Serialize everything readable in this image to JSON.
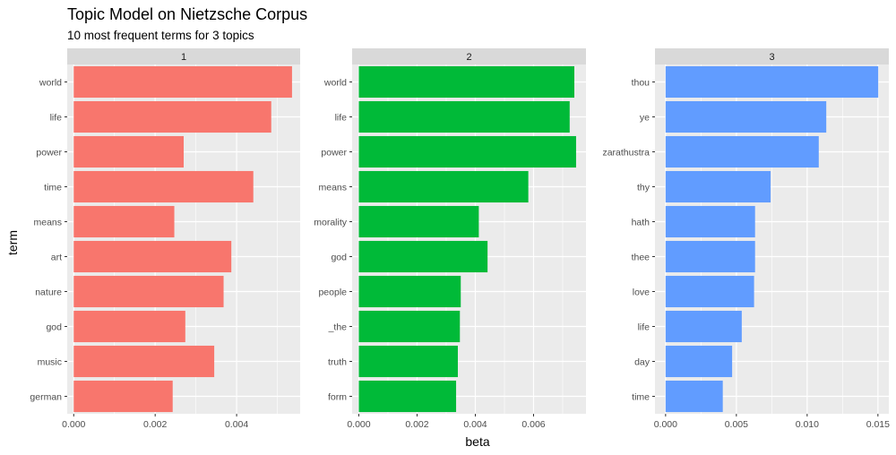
{
  "chart_data": {
    "type": "bar",
    "orientation": "horizontal",
    "title": "Topic Model on Nietzsche Corpus",
    "subtitle": "10 most frequent terms for 3 topics",
    "xlabel": "beta",
    "ylabel": "term",
    "grid": true,
    "legend": "none",
    "panels": [
      {
        "label": "1",
        "color": "#F8766D",
        "xlim": [
          -0.00016,
          0.00556
        ],
        "xticks": [
          0.0,
          0.002,
          0.004
        ],
        "xtick_labels": [
          "0.000",
          "0.002",
          "0.004"
        ],
        "categories": [
          "world",
          "life",
          "power",
          "time",
          "means",
          "art",
          "nature",
          "god",
          "music",
          "german"
        ],
        "values": [
          0.00536,
          0.00485,
          0.0027,
          0.00441,
          0.00247,
          0.00387,
          0.00368,
          0.00274,
          0.00345,
          0.00243
        ]
      },
      {
        "label": "2",
        "color": "#00BA38",
        "xlim": [
          -0.00023,
          0.0078
        ],
        "xticks": [
          0.0,
          0.002,
          0.004,
          0.006
        ],
        "xtick_labels": [
          "0.000",
          "0.002",
          "0.004",
          "0.006"
        ],
        "categories": [
          "world",
          "life",
          "power",
          "means",
          "morality",
          "god",
          "people",
          "_the",
          "truth",
          "form"
        ],
        "values": [
          0.0074,
          0.00724,
          0.00746,
          0.00582,
          0.00412,
          0.00442,
          0.0035,
          0.00347,
          0.0034,
          0.00334
        ]
      },
      {
        "label": "3",
        "color": "#619CFF",
        "xlim": [
          -0.00075,
          0.01577
        ],
        "xticks": [
          0.0,
          0.005,
          0.01,
          0.015
        ],
        "xtick_labels": [
          "0.000",
          "0.005",
          "0.010",
          "0.015"
        ],
        "categories": [
          "thou",
          "ye",
          "zarathustra",
          "thy",
          "hath",
          "thee",
          "love",
          "life",
          "day",
          "time"
        ],
        "values": [
          0.01502,
          0.01135,
          0.01082,
          0.00742,
          0.00632,
          0.00632,
          0.00625,
          0.00538,
          0.0047,
          0.00404
        ]
      }
    ]
  }
}
